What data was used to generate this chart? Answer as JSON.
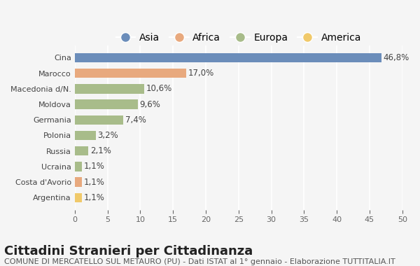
{
  "categories": [
    "Cina",
    "Marocco",
    "Macedonia d/N.",
    "Moldova",
    "Germania",
    "Polonia",
    "Russia",
    "Ucraina",
    "Costa d'Avorio",
    "Argentina"
  ],
  "values": [
    46.8,
    17.0,
    10.6,
    9.6,
    7.4,
    3.2,
    2.1,
    1.1,
    1.1,
    1.1
  ],
  "labels": [
    "46,8%",
    "17,0%",
    "10,6%",
    "9,6%",
    "7,4%",
    "3,2%",
    "2,1%",
    "1,1%",
    "1,1%",
    "1,1%"
  ],
  "colors": [
    "#6b8dba",
    "#e8a97e",
    "#a8bc8a",
    "#a8bc8a",
    "#a8bc8a",
    "#a8bc8a",
    "#a8bc8a",
    "#a8bc8a",
    "#e8a97e",
    "#f0c96a"
  ],
  "legend_labels": [
    "Asia",
    "Africa",
    "Europa",
    "America"
  ],
  "legend_colors": [
    "#6b8dba",
    "#e8a97e",
    "#a8bc8a",
    "#f0c96a"
  ],
  "xlim": [
    0,
    50
  ],
  "xticks": [
    0,
    5,
    10,
    15,
    20,
    25,
    30,
    35,
    40,
    45,
    50
  ],
  "title": "Cittadini Stranieri per Cittadinanza",
  "subtitle": "COMUNE DI MERCATELLO SUL METAURO (PU) - Dati ISTAT al 1° gennaio - Elaborazione TUTTITALIA.IT",
  "background_color": "#f5f5f5",
  "bar_height": 0.6,
  "grid_color": "#ffffff",
  "title_fontsize": 13,
  "subtitle_fontsize": 8,
  "label_fontsize": 8.5,
  "tick_fontsize": 8,
  "legend_fontsize": 10
}
